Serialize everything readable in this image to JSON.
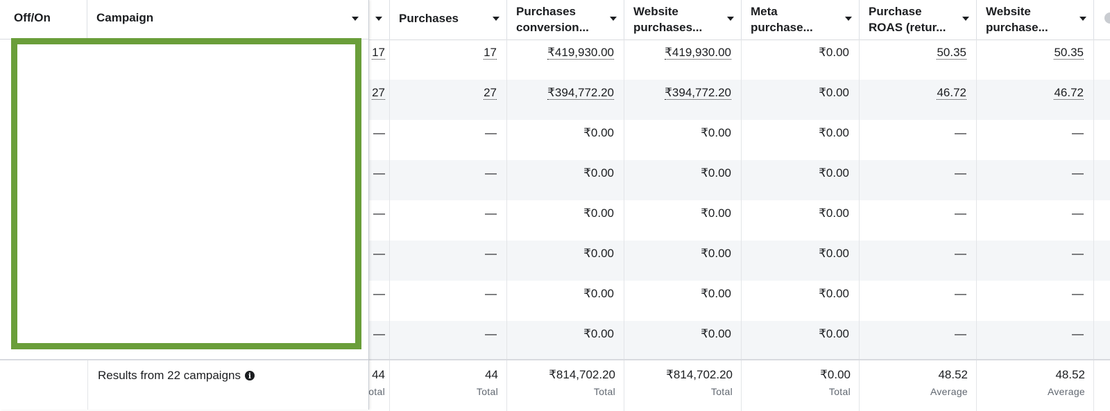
{
  "columns": {
    "offon": "Off/On",
    "campaign": "Campaign",
    "purchases": "Purchases",
    "conv_value_l1": "Purchases",
    "conv_value_l2": "conversion...",
    "web_purch_l1": "Website",
    "web_purch_l2": "purchases...",
    "meta_l1": "Meta",
    "meta_l2": "purchase...",
    "roas_l1": "Purchase",
    "roas_l2": "ROAS (retur...",
    "web_roas_l1": "Website",
    "web_roas_l2": "purchase..."
  },
  "rows": [
    {
      "hidden": "17",
      "purchases": "17",
      "conv": "₹419,930.00",
      "web": "₹419,930.00",
      "meta": "₹0.00",
      "roas": "50.35",
      "web_roas": "50.35",
      "linked": true
    },
    {
      "hidden": "27",
      "purchases": "27",
      "conv": "₹394,772.20",
      "web": "₹394,772.20",
      "meta": "₹0.00",
      "roas": "46.72",
      "web_roas": "46.72",
      "linked": true
    },
    {
      "hidden": "—",
      "purchases": "—",
      "conv": "₹0.00",
      "web": "₹0.00",
      "meta": "₹0.00",
      "roas": "—",
      "web_roas": "—",
      "linked": false
    },
    {
      "hidden": "—",
      "purchases": "—",
      "conv": "₹0.00",
      "web": "₹0.00",
      "meta": "₹0.00",
      "roas": "—",
      "web_roas": "—",
      "linked": false
    },
    {
      "hidden": "—",
      "purchases": "—",
      "conv": "₹0.00",
      "web": "₹0.00",
      "meta": "₹0.00",
      "roas": "—",
      "web_roas": "—",
      "linked": false
    },
    {
      "hidden": "—",
      "purchases": "—",
      "conv": "₹0.00",
      "web": "₹0.00",
      "meta": "₹0.00",
      "roas": "—",
      "web_roas": "—",
      "linked": false
    },
    {
      "hidden": "—",
      "purchases": "—",
      "conv": "₹0.00",
      "web": "₹0.00",
      "meta": "₹0.00",
      "roas": "—",
      "web_roas": "—",
      "linked": false
    },
    {
      "hidden": "—",
      "purchases": "—",
      "conv": "₹0.00",
      "web": "₹0.00",
      "meta": "₹0.00",
      "roas": "—",
      "web_roas": "—",
      "linked": false
    }
  ],
  "footer": {
    "results_text": "Results from 22 campaigns",
    "info_glyph": "i",
    "hidden_value": "44",
    "hidden_sub": "otal",
    "purchases": "44",
    "purchases_sub": "Total",
    "conv": "₹814,702.20",
    "conv_sub": "Total",
    "web": "₹814,702.20",
    "web_sub": "Total",
    "meta": "₹0.00",
    "meta_sub": "Total",
    "roas": "48.52",
    "roas_sub": "Average",
    "web_roas": "48.52",
    "web_roas_sub": "Average"
  },
  "colors": {
    "redaction_border": "#6a9e3a",
    "row_alt": "#f4f6f8"
  }
}
